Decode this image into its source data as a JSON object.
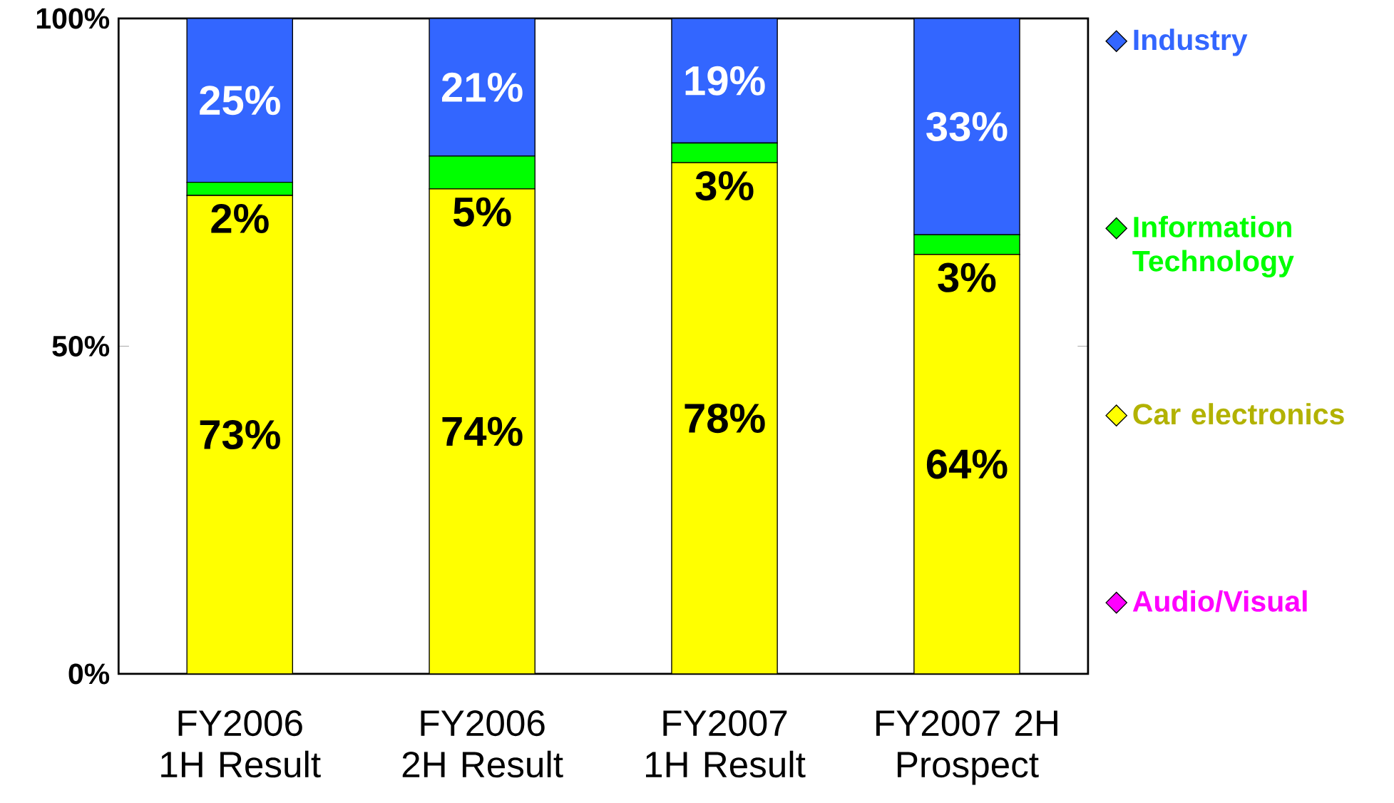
{
  "chart_data": {
    "type": "bar",
    "stacked": true,
    "categories": [
      "FY2006 1H Result",
      "FY2006 2H Result",
      "FY2007 1H Result",
      "FY2007 2H Prospect"
    ],
    "series": [
      {
        "name": "Audio/Visual",
        "color": "#ff00ff",
        "values": [
          0,
          0,
          0,
          0
        ],
        "value_labels": [
          null,
          null,
          null,
          null
        ]
      },
      {
        "name": "Car electronics",
        "color": "#ffff00",
        "values": [
          73,
          74,
          78,
          64
        ],
        "value_labels": [
          "73%",
          "74%",
          "78%",
          "64%"
        ]
      },
      {
        "name": "Information Technology",
        "color": "#00ff00",
        "values": [
          2,
          5,
          3,
          3
        ],
        "value_labels": [
          "2%",
          "5%",
          "3%",
          "3%"
        ]
      },
      {
        "name": "Industry",
        "color": "#3366ff",
        "values": [
          25,
          21,
          19,
          33
        ],
        "value_labels": [
          "25%",
          "21%",
          "19%",
          "33%"
        ]
      }
    ],
    "ylim": [
      0,
      100
    ],
    "yticks": [
      {
        "value": 0,
        "label": "0%"
      },
      {
        "value": 50,
        "label": "50%"
      },
      {
        "value": 100,
        "label": "100%"
      }
    ],
    "legend": "right"
  }
}
